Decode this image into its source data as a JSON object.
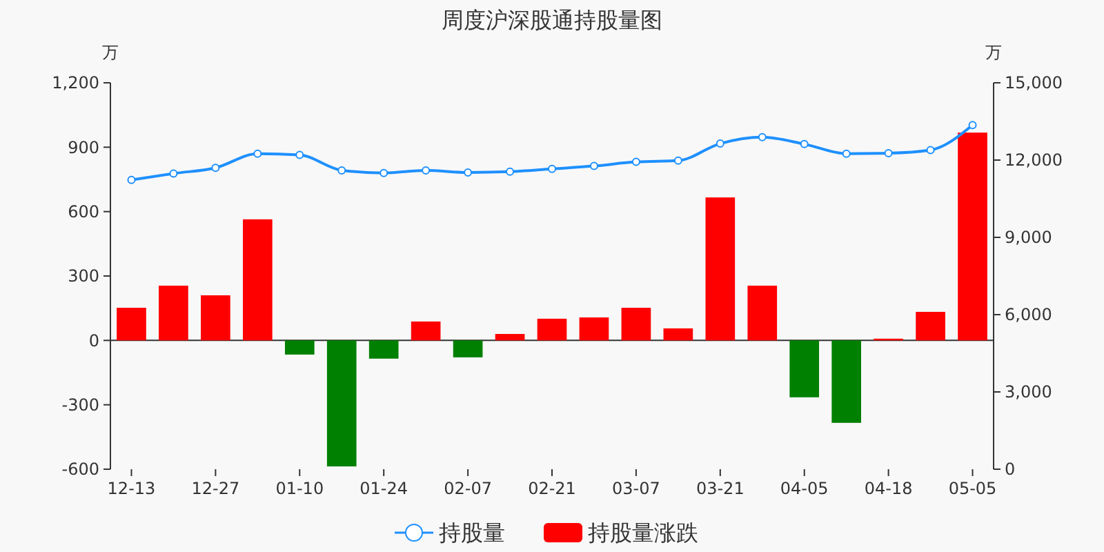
{
  "chart_data": {
    "type": "bar",
    "title": "周度沪深股通持股量图",
    "ylabel": "万",
    "y2label": "万",
    "categories": [
      "12-13",
      null,
      "12-27",
      null,
      "01-10",
      null,
      "01-24",
      null,
      "02-07",
      null,
      "02-21",
      null,
      "03-07",
      null,
      "03-21",
      null,
      "04-05",
      null,
      "04-18",
      null,
      "05-05"
    ],
    "series": [
      {
        "name": "持股量",
        "type": "line",
        "axis": "y2",
        "color": "#1e90ff",
        "marker": "circle",
        "values": [
          11230,
          11480,
          11700,
          12250,
          12200,
          11600,
          11500,
          11600,
          11520,
          11550,
          11660,
          11770,
          11930,
          11980,
          12640,
          12890,
          12620,
          12250,
          12270,
          12390,
          13360
        ]
      },
      {
        "name": "持股量涨跌",
        "color": "#ff0000",
        "colors": [
          "#ff0000",
          "#ff0000",
          "#ff0000",
          "#ff0000",
          "#008000",
          "#008000",
          "#008000",
          "#ff0000",
          "#008000",
          "#ff0000",
          "#ff0000",
          "#ff0000",
          "#ff0000",
          "#ff0000",
          "#ff0000",
          "#ff0000",
          "#008000",
          "#008000",
          "#ff0000",
          "#ff0000",
          "#ff0000"
        ],
        "values": [
          152,
          255,
          210,
          564,
          -66,
          -587,
          -85,
          88,
          -79,
          30,
          101,
          107,
          152,
          56,
          666,
          255,
          -265,
          -384,
          8,
          133,
          968
        ]
      }
    ],
    "ylim": [
      -600,
      1200
    ],
    "yticks": [
      {
        "value": -600,
        "label": "-600"
      },
      {
        "value": -300,
        "label": "-300"
      },
      0,
      300,
      600,
      900,
      {
        "value": 1200,
        "label": "1,200"
      }
    ],
    "y2lim": [
      0,
      15000
    ],
    "y2ticks": [
      0,
      {
        "value": 3000,
        "label": "3,000"
      },
      {
        "value": 6000,
        "label": "6,000"
      },
      {
        "value": 9000,
        "label": "9,000"
      },
      {
        "value": 12000,
        "label": "12,000"
      },
      {
        "value": 15000,
        "label": "15,000"
      }
    ],
    "legend": "bottom"
  }
}
